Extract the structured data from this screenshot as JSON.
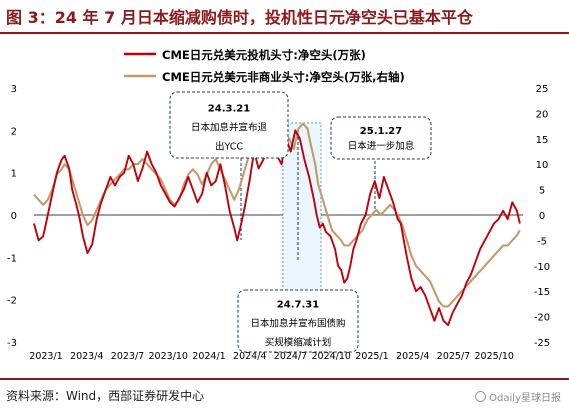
{
  "header": {
    "title": "图 3：24 年 7 月日本缩减购债时，投机性日元净空头已基本平仓"
  },
  "footer": {
    "source": "资料来源：Wind，西部证券研发中心",
    "watermark": "Odaily星球日报"
  },
  "chart_data": {
    "type": "line",
    "x_ticks": [
      "2023/1",
      "2023/4",
      "2023/7",
      "2023/10",
      "2024/1",
      "2024/4",
      "2024/7",
      "2024/10",
      "2025/1",
      "2025/4",
      "2025/7",
      "2025/10"
    ],
    "y_left": {
      "ticks": [
        3,
        2,
        1,
        0,
        -1,
        -2,
        -3
      ],
      "ylim": [
        -3,
        3
      ]
    },
    "y_right": {
      "ticks": [
        25,
        20,
        15,
        10,
        5,
        0,
        -5,
        -10,
        -15,
        -20,
        -25
      ],
      "ylim": [
        -25,
        25
      ]
    },
    "series": [
      {
        "name": "CME日元兑美元投机头寸:净空头(万张)",
        "color": "#c0000a",
        "axis": "left",
        "points": [
          [
            0,
            -0.2
          ],
          [
            3,
            -0.6
          ],
          [
            6,
            -0.5
          ],
          [
            9,
            0.0
          ],
          [
            12,
            0.5
          ],
          [
            15,
            1.0
          ],
          [
            18,
            1.3
          ],
          [
            20,
            1.4
          ],
          [
            23,
            1.1
          ],
          [
            25,
            0.6
          ],
          [
            28,
            0.2
          ],
          [
            30,
            -0.1
          ],
          [
            32,
            -0.5
          ],
          [
            35,
            -0.9
          ],
          [
            38,
            -0.7
          ],
          [
            41,
            -0.1
          ],
          [
            44,
            0.3
          ],
          [
            47,
            0.6
          ],
          [
            50,
            0.9
          ],
          [
            53,
            0.7
          ],
          [
            56,
            0.9
          ],
          [
            59,
            1.0
          ],
          [
            62,
            1.4
          ],
          [
            65,
            1.2
          ],
          [
            68,
            0.8
          ],
          [
            71,
            1.1
          ],
          [
            74,
            1.5
          ],
          [
            77,
            1.2
          ],
          [
            80,
            1.0
          ],
          [
            83,
            0.7
          ],
          [
            86,
            0.5
          ],
          [
            89,
            0.3
          ],
          [
            92,
            0.2
          ],
          [
            95,
            0.4
          ],
          [
            98,
            0.6
          ],
          [
            101,
            0.9
          ],
          [
            104,
            0.6
          ],
          [
            107,
            0.3
          ],
          [
            110,
            0.5
          ],
          [
            113,
            1.0
          ],
          [
            116,
            0.7
          ],
          [
            119,
            0.8
          ],
          [
            122,
            1.2
          ],
          [
            125,
            0.7
          ],
          [
            128,
            0.1
          ],
          [
            131,
            -0.3
          ],
          [
            133,
            -0.6
          ],
          [
            135,
            -0.3
          ],
          [
            138,
            0.2
          ],
          [
            141,
            0.8
          ],
          [
            144,
            1.5
          ],
          [
            147,
            1.1
          ],
          [
            150,
            1.3
          ],
          [
            153,
            1.6
          ],
          [
            156,
            1.9
          ],
          [
            159,
            1.4
          ],
          [
            162,
            1.2
          ],
          [
            165,
            1.8
          ],
          [
            168,
            1.5
          ],
          [
            171,
            2.0
          ],
          [
            174,
            1.8
          ],
          [
            177,
            1.3
          ],
          [
            180,
            0.9
          ],
          [
            183,
            0.4
          ],
          [
            185,
            0.0
          ],
          [
            187,
            -0.3
          ],
          [
            189,
            -0.2
          ],
          [
            191,
            -0.4
          ],
          [
            194,
            -0.5
          ],
          [
            197,
            -0.8
          ],
          [
            199,
            -1.2
          ],
          [
            201,
            -1.3
          ],
          [
            203,
            -1.6
          ],
          [
            205,
            -1.5
          ],
          [
            207,
            -1.2
          ],
          [
            209,
            -0.8
          ],
          [
            211,
            -0.6
          ],
          [
            214,
            -0.2
          ],
          [
            217,
            0.0
          ],
          [
            220,
            0.5
          ],
          [
            223,
            0.8
          ],
          [
            226,
            0.4
          ],
          [
            229,
            0.9
          ],
          [
            232,
            0.6
          ],
          [
            235,
            0.3
          ],
          [
            238,
            -0.1
          ],
          [
            240,
            -0.2
          ],
          [
            242,
            -0.6
          ],
          [
            244,
            -1.0
          ],
          [
            247,
            -1.5
          ],
          [
            250,
            -1.8
          ],
          [
            253,
            -1.7
          ],
          [
            256,
            -1.9
          ],
          [
            259,
            -2.2
          ],
          [
            262,
            -2.5
          ],
          [
            265,
            -2.2
          ],
          [
            268,
            -2.5
          ],
          [
            271,
            -2.6
          ],
          [
            274,
            -2.3
          ],
          [
            277,
            -2.1
          ],
          [
            280,
            -1.9
          ],
          [
            283,
            -1.6
          ],
          [
            286,
            -1.4
          ],
          [
            289,
            -1.1
          ],
          [
            292,
            -0.8
          ],
          [
            295,
            -0.6
          ],
          [
            298,
            -0.4
          ],
          [
            301,
            -0.2
          ],
          [
            304,
            -0.1
          ],
          [
            307,
            0.1
          ],
          [
            310,
            -0.1
          ],
          [
            313,
            0.3
          ],
          [
            316,
            0.1
          ],
          [
            318,
            -0.2
          ]
        ]
      },
      {
        "name": "CME日元兑美元非商业头寸:净空头(万张,右轴)",
        "color": "#c49a6c",
        "axis": "right",
        "points": [
          [
            0,
            4
          ],
          [
            3,
            3
          ],
          [
            6,
            2
          ],
          [
            9,
            3
          ],
          [
            12,
            5
          ],
          [
            15,
            8
          ],
          [
            18,
            9
          ],
          [
            20,
            10
          ],
          [
            23,
            9
          ],
          [
            25,
            7
          ],
          [
            28,
            4
          ],
          [
            30,
            2
          ],
          [
            32,
            0
          ],
          [
            35,
            -2
          ],
          [
            38,
            -1
          ],
          [
            41,
            1
          ],
          [
            44,
            3
          ],
          [
            47,
            5
          ],
          [
            50,
            6
          ],
          [
            53,
            7
          ],
          [
            56,
            8
          ],
          [
            59,
            9
          ],
          [
            62,
            9
          ],
          [
            65,
            10
          ],
          [
            68,
            10
          ],
          [
            71,
            11
          ],
          [
            74,
            10
          ],
          [
            77,
            9
          ],
          [
            80,
            8
          ],
          [
            83,
            7
          ],
          [
            86,
            5
          ],
          [
            89,
            3
          ],
          [
            92,
            2
          ],
          [
            95,
            3
          ],
          [
            98,
            6
          ],
          [
            101,
            8
          ],
          [
            104,
            9
          ],
          [
            107,
            8
          ],
          [
            110,
            6
          ],
          [
            113,
            8
          ],
          [
            116,
            10
          ],
          [
            119,
            11
          ],
          [
            122,
            9
          ],
          [
            125,
            7
          ],
          [
            128,
            5
          ],
          [
            131,
            3
          ],
          [
            134,
            5
          ],
          [
            137,
            8
          ],
          [
            140,
            11
          ],
          [
            143,
            13
          ],
          [
            146,
            14
          ],
          [
            149,
            15
          ],
          [
            152,
            16
          ],
          [
            155,
            17
          ],
          [
            158,
            15
          ],
          [
            161,
            14
          ],
          [
            164,
            16
          ],
          [
            167,
            15
          ],
          [
            170,
            13
          ],
          [
            173,
            17
          ],
          [
            176,
            18
          ],
          [
            179,
            17
          ],
          [
            181,
            14
          ],
          [
            184,
            10
          ],
          [
            186,
            6
          ],
          [
            189,
            3
          ],
          [
            192,
            0
          ],
          [
            195,
            -3
          ],
          [
            198,
            -4
          ],
          [
            201,
            -5
          ],
          [
            203,
            -6
          ],
          [
            206,
            -6
          ],
          [
            209,
            -5
          ],
          [
            212,
            -4
          ],
          [
            215,
            -3
          ],
          [
            218,
            -1
          ],
          [
            221,
            0
          ],
          [
            224,
            1
          ],
          [
            227,
            0
          ],
          [
            230,
            1
          ],
          [
            233,
            2
          ],
          [
            236,
            1
          ],
          [
            238,
            0
          ],
          [
            241,
            -2
          ],
          [
            244,
            -5
          ],
          [
            247,
            -8
          ],
          [
            250,
            -10
          ],
          [
            253,
            -11
          ],
          [
            256,
            -12
          ],
          [
            259,
            -13
          ],
          [
            262,
            -15
          ],
          [
            265,
            -17
          ],
          [
            268,
            -18
          ],
          [
            271,
            -18
          ],
          [
            274,
            -17
          ],
          [
            277,
            -16
          ],
          [
            280,
            -15
          ],
          [
            283,
            -14
          ],
          [
            286,
            -13
          ],
          [
            289,
            -12
          ],
          [
            292,
            -11
          ],
          [
            295,
            -10
          ],
          [
            298,
            -9
          ],
          [
            301,
            -8
          ],
          [
            304,
            -7
          ],
          [
            307,
            -6
          ],
          [
            310,
            -6
          ],
          [
            313,
            -5
          ],
          [
            316,
            -4
          ],
          [
            318,
            -3
          ]
        ]
      }
    ],
    "annotations": [
      {
        "lines": [
          "24.3.21",
          "日本加息并宣布退",
          "出YCC"
        ]
      },
      {
        "lines": [
          "25.1.27",
          "日本进一步加息"
        ]
      },
      {
        "lines": [
          "24.7.31",
          "日本加息并宣布国债购",
          "买规模缩减计划"
        ]
      }
    ]
  }
}
